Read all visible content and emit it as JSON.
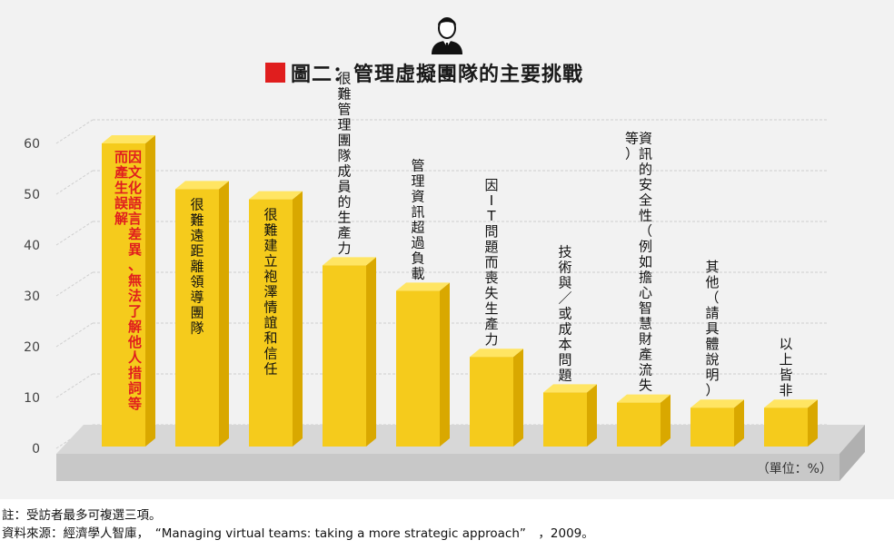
{
  "title": "圖二：管理虛擬團隊的主要挑戰",
  "unit_label": "（單位：%）",
  "icons": {
    "avatar": "businessman-icon",
    "title_marker": "red-square-icon"
  },
  "colors": {
    "bar_front": "#f5cb1c",
    "bar_top": "#ffe563",
    "bar_side": "#d9a800",
    "highlight_text": "#e01e1e",
    "title_marker": "#e01e1e",
    "floor": "#c8c8c8"
  },
  "notes": [
    "註：受訪者最多可複選三項。",
    "資料來源：經濟學人智庫，　“Managing virtual teams: taking a more strategic approach”　，2009。"
  ],
  "chart_data": {
    "type": "bar",
    "title": "圖二：管理虛擬團隊的主要挑戰",
    "yticks": [
      0,
      10,
      20,
      30,
      40,
      50,
      60
    ],
    "ylim": [
      0,
      65
    ],
    "grid": true,
    "series": [
      {
        "categories": [
          "因文化語言差異、無法了解他人措詞等而產生誤解",
          "很難遠距離領導團隊",
          "很難建立袍澤情誼和信任",
          "很難管理團隊成員的生產力",
          "管理資訊超過負載",
          "因IT問題而喪失生產力",
          "技術與／或成本問題",
          "資訊的安全性（例如擔心智慧財產流失等）",
          "其他（請具體說明）",
          "以上皆非"
        ],
        "values": [
          60,
          51,
          49,
          36,
          31,
          18,
          11,
          9,
          8,
          8
        ]
      }
    ],
    "highlighted_index": 0
  }
}
